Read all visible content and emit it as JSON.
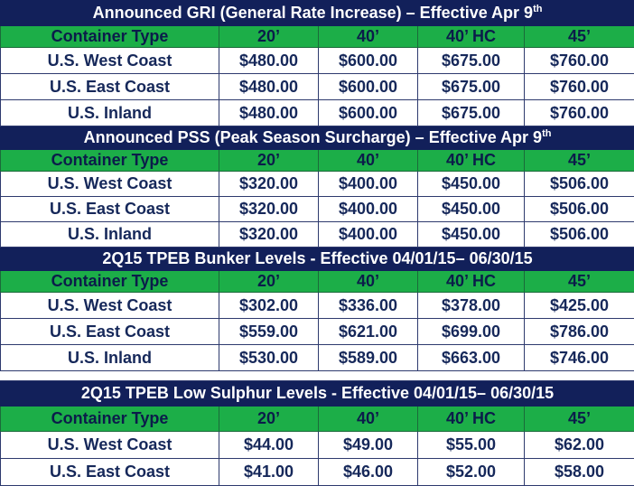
{
  "sections": [
    {
      "title": "Announced GRI (General Rate Increase) – Effective Apr 9",
      "title_sup": "th",
      "header": [
        "Container Type",
        "20’",
        "40’",
        "40’ HC",
        "45’"
      ],
      "rows": [
        [
          "U.S. West Coast",
          "$480.00",
          "$600.00",
          "$675.00",
          "$760.00"
        ],
        [
          "U.S. East Coast",
          "$480.00",
          "$600.00",
          "$675.00",
          "$760.00"
        ],
        [
          "U.S. Inland",
          "$480.00",
          "$600.00",
          "$675.00",
          "$760.00"
        ]
      ]
    },
    {
      "title": "Announced PSS (Peak Season Surcharge) – Effective Apr 9",
      "title_sup": "th",
      "header": [
        "Container Type",
        "20’",
        "40’",
        "40’ HC",
        "45’"
      ],
      "rows": [
        [
          "U.S. West Coast",
          "$320.00",
          "$400.00",
          "$450.00",
          "$506.00"
        ],
        [
          "U.S. East Coast",
          "$320.00",
          "$400.00",
          "$450.00",
          "$506.00"
        ],
        [
          "U.S. Inland",
          "$320.00",
          "$400.00",
          "$450.00",
          "$506.00"
        ]
      ]
    },
    {
      "title": "2Q15 TPEB Bunker Levels - Effective 04/01/15– 06/30/15",
      "title_sup": "",
      "header": [
        "Container Type",
        "20’",
        "40’",
        "40’ HC",
        "45’"
      ],
      "rows": [
        [
          "U.S. West Coast",
          "$302.00",
          "$336.00",
          "$378.00",
          "$425.00"
        ],
        [
          "U.S. East Coast",
          "$559.00",
          "$621.00",
          "$699.00",
          "$786.00"
        ],
        [
          "U.S. Inland",
          "$530.00",
          "$589.00",
          "$663.00",
          "$746.00"
        ]
      ]
    },
    {
      "title": "2Q15 TPEB Low Sulphur Levels - Effective 04/01/15– 06/30/15",
      "title_sup": "",
      "header": [
        "Container Type",
        "20’",
        "40’",
        "40’ HC",
        "45’"
      ],
      "rows": [
        [
          "U.S. West Coast",
          "$44.00",
          "$49.00",
          "$55.00",
          "$62.00"
        ],
        [
          "U.S. East Coast",
          "$41.00",
          "$46.00",
          "$52.00",
          "$58.00"
        ]
      ]
    }
  ]
}
